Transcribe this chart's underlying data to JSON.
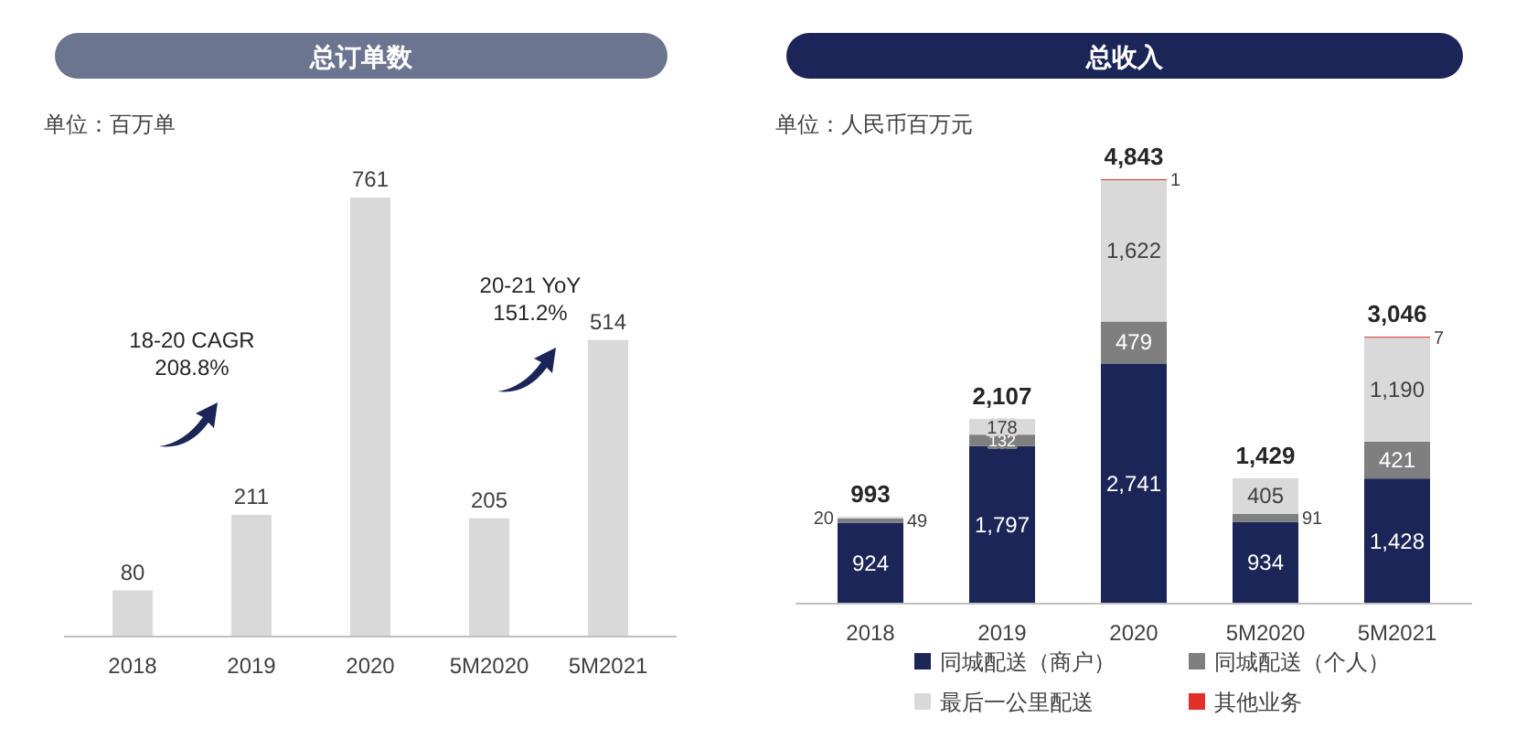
{
  "chart_data": [
    {
      "type": "bar",
      "title": "总订单数",
      "subtitle": "单位：百万单",
      "categories": [
        "2018",
        "2019",
        "2020",
        "5M2020",
        "5M2021"
      ],
      "values": [
        80,
        211,
        761,
        205,
        514
      ],
      "color": "#d9d9d9",
      "data_labels": true,
      "legend": false,
      "annotations": [
        "18-20 CAGR 208.8%",
        "20-21 YoY 151.2%"
      ]
    },
    {
      "type": "bar",
      "stacked": true,
      "title": "总收入",
      "subtitle": "单位：人民币百万元",
      "categories": [
        "2018",
        "2019",
        "2020",
        "5M2020",
        "5M2021"
      ],
      "series": [
        {
          "name": "同城配送（商户）",
          "color": "#1b2557",
          "values": [
            924,
            1797,
            2741,
            934,
            1428
          ],
          "value_labels": [
            "924",
            "1,797",
            "2,741",
            "934",
            "1,428"
          ]
        },
        {
          "name": "同城配送（个人）",
          "color": "#7f7f7f",
          "values": [
            49,
            132,
            479,
            91,
            421
          ],
          "value_labels": [
            "49",
            "132",
            "479",
            "91",
            "421"
          ]
        },
        {
          "name": "最后一公里配送",
          "color": "#d9d9d9",
          "values": [
            20,
            178,
            1622,
            405,
            1190
          ],
          "value_labels": [
            "20",
            "178",
            "1,622",
            "405",
            "1,190"
          ]
        },
        {
          "name": "其他业务",
          "color": "#e0302a",
          "values": [
            null,
            null,
            1,
            null,
            7
          ],
          "value_labels": [
            null,
            null,
            "1",
            null,
            "7"
          ]
        }
      ],
      "totals": [
        "993",
        "2,107",
        "4,843",
        "1,429",
        "3,046"
      ],
      "legend": "bottom"
    }
  ]
}
